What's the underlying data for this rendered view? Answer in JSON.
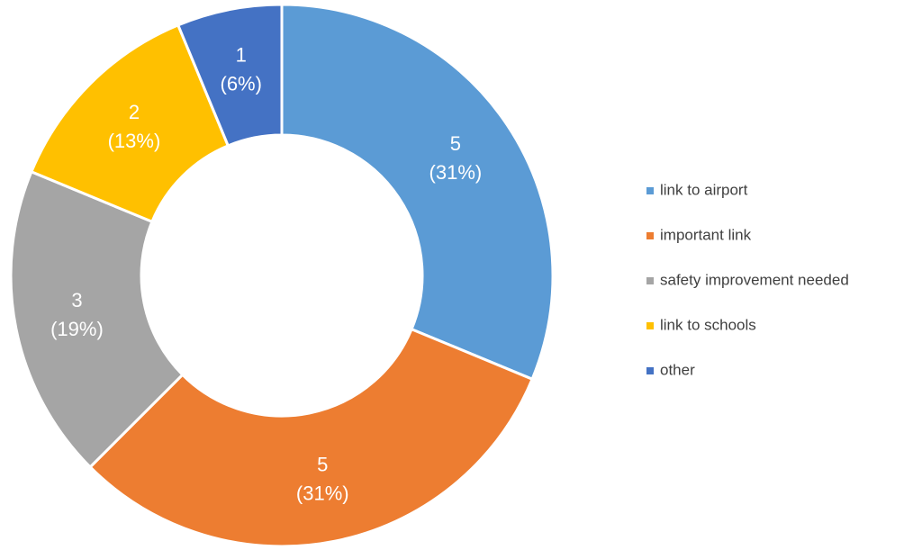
{
  "chart_data": {
    "type": "donut",
    "categories": [
      "link to airport",
      "important link",
      "safety improvement needed",
      "link to schools",
      "other"
    ],
    "values": [
      5,
      5,
      3,
      2,
      1
    ],
    "percent_labels": [
      "(31%)",
      "(31%)",
      "(19%)",
      "(13%)",
      "(6%)"
    ],
    "colors": [
      "#5b9bd5",
      "#ed7d31",
      "#a5a5a5",
      "#ffc000",
      "#4472c4"
    ],
    "legend": "right"
  }
}
